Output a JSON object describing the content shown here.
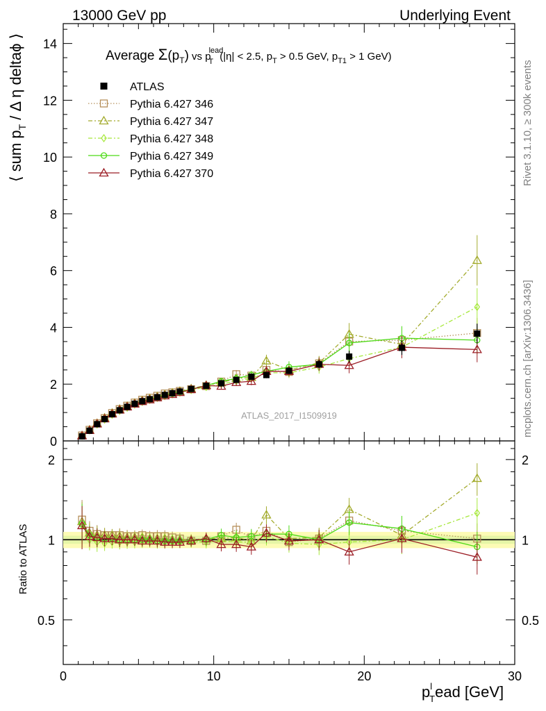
{
  "header": {
    "left": "13000 GeV pp",
    "right": "Underlying Event"
  },
  "title": {
    "prefix": "Average ",
    "sigma": "Σ",
    "pt_open": "(p",
    "pt_sub": "T",
    "pt_close": ")",
    "vs": " vs p",
    "lead_sup": "lead",
    "lead_sub": "T",
    "cuts_a": " (|η| < 2.5, p",
    "cuts_a_sub": "T",
    "cuts_b": " > 0.5 GeV, p",
    "cuts_b_sub": "T1",
    "cuts_c": " > 1 GeV)"
  },
  "side_labels": {
    "rivet": "Rivet 3.1.10, ≥ 300k events",
    "mcplots": "mcplots.cern.ch [arXiv:1306.3436]"
  },
  "watermark": "ATLAS_2017_I1509919",
  "axes": {
    "ylabel_main_a": "⟨ sum p",
    "ylabel_main_sub": "T",
    "ylabel_main_b": " / Δ η deltaϕ ⟩",
    "ylabel_ratio": "Ratio to ATLAS",
    "xlabel_a": "p",
    "xlabel_sup": "l",
    "xlabel_sub": "T",
    "xlabel_b": "ead [GeV]"
  },
  "chart_data": {
    "type": "line",
    "x": [
      1.25,
      1.75,
      2.25,
      2.75,
      3.25,
      3.75,
      4.25,
      4.75,
      5.25,
      5.75,
      6.25,
      6.75,
      7.25,
      7.75,
      8.5,
      9.5,
      10.5,
      11.5,
      12.5,
      13.5,
      15,
      17,
      19,
      22.5,
      27.5
    ],
    "main": {
      "xlim": [
        0,
        30
      ],
      "ylim": [
        0,
        14.7
      ],
      "xticks": [
        0,
        10,
        20,
        30
      ],
      "yticks": [
        0,
        2,
        4,
        6,
        8,
        10,
        12,
        14
      ],
      "yticklabels": [
        "0",
        "2",
        "4",
        "6",
        "8",
        "10",
        "12",
        "14"
      ]
    },
    "ratio": {
      "ylim": [
        0.34,
        2.35
      ],
      "yticks": [
        0.5,
        1,
        2
      ],
      "yticklabels": [
        "0.5",
        "1",
        "2"
      ],
      "band_half_width": [
        0.035,
        0.07
      ]
    },
    "series": [
      {
        "name": "ATLAS",
        "color": "#000000",
        "marker": "filled-square",
        "dash": "",
        "y": [
          0.16,
          0.36,
          0.59,
          0.77,
          0.94,
          1.08,
          1.2,
          1.31,
          1.4,
          1.47,
          1.54,
          1.62,
          1.68,
          1.74,
          1.83,
          1.94,
          2.03,
          2.15,
          2.26,
          2.32,
          2.47,
          2.7,
          2.97,
          3.28,
          3.78
        ],
        "yerr": [
          0.02,
          0.02,
          0.03,
          0.03,
          0.03,
          0.04,
          0.04,
          0.04,
          0.04,
          0.04,
          0.05,
          0.05,
          0.05,
          0.05,
          0.05,
          0.06,
          0.07,
          0.08,
          0.09,
          0.11,
          0.12,
          0.15,
          0.2,
          0.25,
          0.35
        ]
      },
      {
        "name": "Pythia 6.427 346",
        "color": "#b58f5a",
        "marker": "open-square",
        "dash": "1.5,2.5",
        "y": [
          0.19,
          0.39,
          0.62,
          0.8,
          0.98,
          1.12,
          1.24,
          1.35,
          1.45,
          1.52,
          1.59,
          1.67,
          1.71,
          1.76,
          1.82,
          1.93,
          2.09,
          2.35,
          2.3,
          2.5,
          2.43,
          2.73,
          3.5,
          3.55,
          3.8
        ],
        "ratio": [
          1.19,
          1.08,
          1.05,
          1.04,
          1.04,
          1.04,
          1.03,
          1.03,
          1.04,
          1.03,
          1.03,
          1.03,
          1.02,
          1.01,
          0.99,
          0.99,
          1.03,
          1.09,
          1.02,
          1.08,
          0.98,
          1.01,
          1.18,
          1.08,
          1.01
        ]
      },
      {
        "name": "Pythia 6.427 347",
        "color": "#a3ab2d",
        "marker": "open-triangle",
        "dash": "6,3,2,3",
        "y": [
          0.19,
          0.39,
          0.62,
          0.81,
          0.98,
          1.12,
          1.22,
          1.33,
          1.42,
          1.49,
          1.56,
          1.63,
          1.69,
          1.75,
          1.84,
          1.96,
          2.05,
          2.2,
          2.24,
          2.82,
          2.5,
          2.75,
          3.76,
          3.4,
          6.36
        ],
        "ratio": [
          1.17,
          1.06,
          1.04,
          1.04,
          1.04,
          1.03,
          1.02,
          1.02,
          1.02,
          1.01,
          1.01,
          1.01,
          1.0,
          1.0,
          1.0,
          1.01,
          1.01,
          1.02,
          0.99,
          1.24,
          1.01,
          1.02,
          1.3,
          1.04,
          1.7
        ]
      },
      {
        "name": "Pythia 6.427 348",
        "color": "#a6e83a",
        "marker": "open-diamond",
        "dash": "6,3,2,3",
        "y": [
          0.18,
          0.37,
          0.58,
          0.75,
          0.92,
          1.06,
          1.17,
          1.28,
          1.37,
          1.44,
          1.51,
          1.58,
          1.64,
          1.7,
          1.79,
          1.9,
          2.0,
          2.11,
          2.2,
          2.4,
          2.4,
          2.6,
          2.9,
          3.3,
          4.72
        ],
        "ratio": [
          1.13,
          1.0,
          0.98,
          0.97,
          0.98,
          0.98,
          0.98,
          0.98,
          0.98,
          0.98,
          0.98,
          0.98,
          0.98,
          0.98,
          0.98,
          0.98,
          0.99,
          0.98,
          0.98,
          1.03,
          0.97,
          0.96,
          0.98,
          1.0,
          1.26
        ]
      },
      {
        "name": "Pythia 6.427 349",
        "color": "#4ddb16",
        "marker": "open-circle",
        "dash": "",
        "y": [
          0.18,
          0.37,
          0.6,
          0.78,
          0.95,
          1.09,
          1.2,
          1.31,
          1.4,
          1.47,
          1.54,
          1.61,
          1.67,
          1.73,
          1.82,
          1.95,
          2.1,
          2.2,
          2.32,
          2.45,
          2.6,
          2.7,
          3.45,
          3.62,
          3.55
        ],
        "ratio": [
          1.15,
          1.04,
          1.02,
          1.01,
          1.01,
          1.0,
          1.0,
          1.0,
          1.0,
          1.0,
          0.99,
          0.99,
          0.99,
          0.99,
          0.99,
          1.0,
          1.04,
          1.02,
          1.03,
          1.05,
          1.05,
          1.0,
          1.16,
          1.1,
          0.94
        ]
      },
      {
        "name": "Pythia 6.427 370",
        "color": "#9b1c24",
        "marker": "open-triangle",
        "dash": "",
        "y": [
          0.18,
          0.37,
          0.6,
          0.78,
          0.95,
          1.09,
          1.2,
          1.3,
          1.39,
          1.45,
          1.52,
          1.59,
          1.64,
          1.71,
          1.81,
          1.95,
          1.93,
          2.06,
          2.1,
          2.45,
          2.45,
          2.7,
          2.66,
          3.3,
          3.22
        ],
        "ratio": [
          1.13,
          1.03,
          1.02,
          1.01,
          1.01,
          1.0,
          1.0,
          1.0,
          0.99,
          0.99,
          0.99,
          0.98,
          0.98,
          0.98,
          0.99,
          1.01,
          0.96,
          0.96,
          0.94,
          1.06,
          0.99,
          1.0,
          0.9,
          1.01,
          0.86
        ]
      }
    ]
  }
}
